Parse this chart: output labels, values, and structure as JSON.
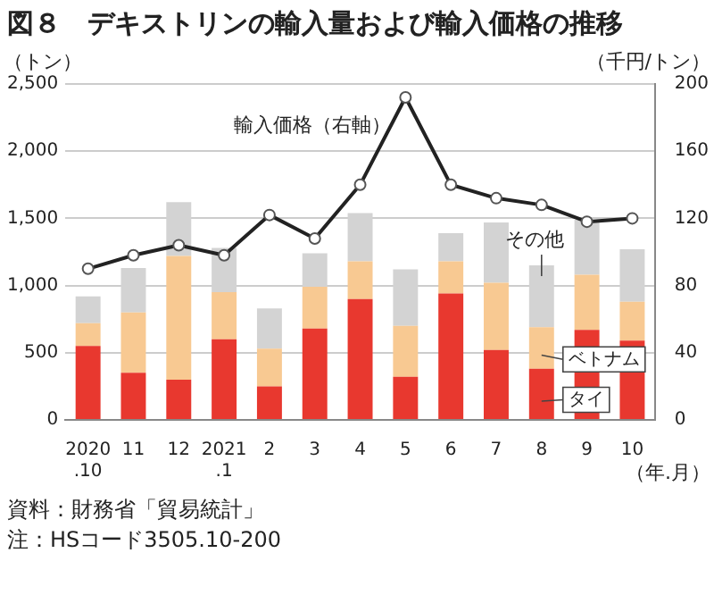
{
  "chart_data": {
    "type": "bar",
    "title": "図８　デキストリンの輸入量および輸入価格の推移",
    "ylabel": "（トン）",
    "y2label": "（千円/トン）",
    "xlabel": "（年.月）",
    "annotations": [
      "資料：財務省「貿易統計」",
      "注：HSコード3505.10-200"
    ],
    "categories": [
      "2020\n.10",
      "11",
      "12",
      "2021\n.1",
      "2",
      "3",
      "4",
      "5",
      "6",
      "7",
      "8",
      "9",
      "10"
    ],
    "stacked": true,
    "grid": "y",
    "legend": false,
    "ylim": [
      0,
      2500
    ],
    "yticks": [
      0,
      {
        "value": 500,
        "label": "500"
      },
      {
        "value": 1000,
        "label": "1,000"
      },
      {
        "value": 1500,
        "label": "1,500"
      },
      {
        "value": 2000,
        "label": "2,000"
      },
      {
        "value": 2500,
        "label": "2,500"
      }
    ],
    "y2lim": [
      0,
      200
    ],
    "y2ticks": [
      0,
      40,
      80,
      120,
      160,
      200
    ],
    "series": [
      {
        "name": "タイ",
        "color": "#e8382f",
        "values": [
          550,
          350,
          300,
          600,
          250,
          680,
          900,
          320,
          940,
          520,
          380,
          670,
          590
        ]
      },
      {
        "name": "ベトナム",
        "color": "#f8c992",
        "values": [
          170,
          450,
          920,
          350,
          280,
          310,
          280,
          380,
          240,
          500,
          310,
          410,
          290
        ]
      },
      {
        "name": "その他",
        "color": "#d3d3d3",
        "values": [
          200,
          330,
          400,
          330,
          300,
          250,
          360,
          420,
          210,
          450,
          460,
          410,
          390
        ]
      },
      {
        "name": "輸入価格（右軸）",
        "type": "line",
        "axis": "y2",
        "color": "#222222",
        "marker": "circle",
        "values": [
          90,
          98,
          104,
          98,
          122,
          108,
          140,
          192,
          140,
          132,
          128,
          118,
          120
        ]
      }
    ]
  }
}
